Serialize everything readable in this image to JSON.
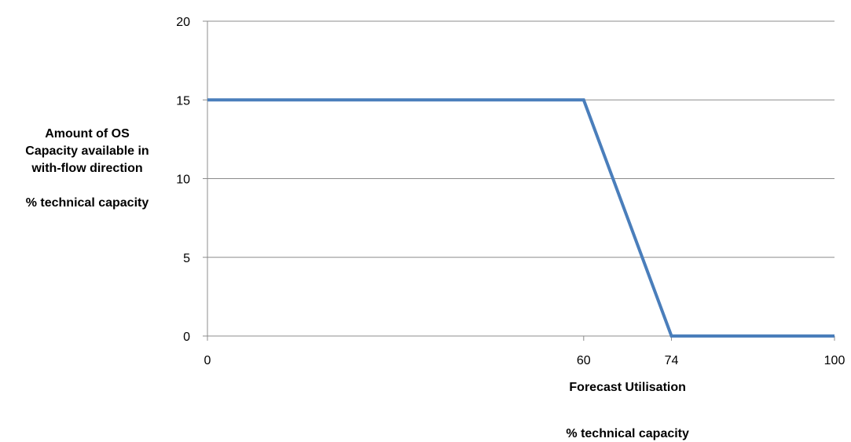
{
  "chart_data": {
    "type": "line",
    "x": [
      0,
      60,
      74,
      100
    ],
    "y": [
      15,
      15,
      0,
      0
    ],
    "xticks": [
      "0",
      "60",
      "74",
      "100"
    ],
    "yticks": [
      "0",
      "5",
      "10",
      "15",
      "20"
    ],
    "xlim": [
      0,
      100
    ],
    "ylim": [
      0,
      20
    ],
    "xlabel": "Forecast Utilisation",
    "xlabel_unit": "% technical capacity",
    "ylabel_lines": [
      "Amount of OS",
      "Capacity available in",
      "with-flow direction"
    ],
    "ylabel_unit": "% technical capacity",
    "grid": true,
    "line_color": "#4a7ebb"
  }
}
